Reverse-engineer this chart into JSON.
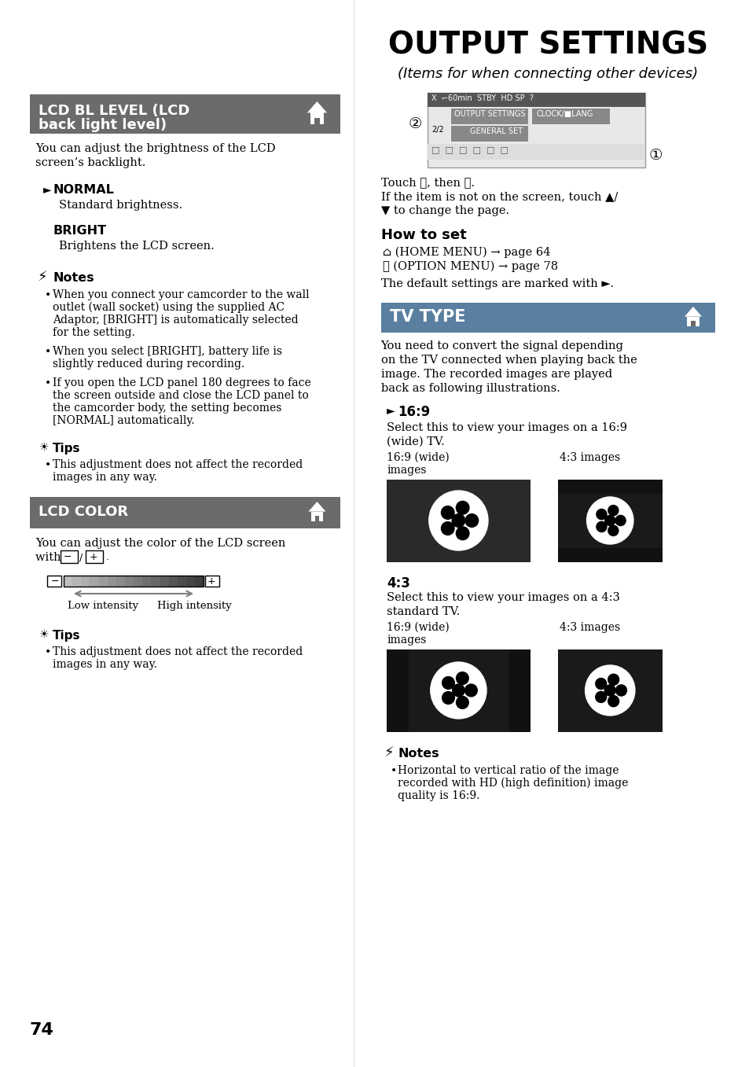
{
  "bg_color": "#ffffff",
  "title": "OUTPUT SETTINGS",
  "subtitle": "(Items for when connecting other devices)",
  "section1_header": "LCD BL LEVEL (LCD\nback light level)",
  "section1_color": "#6b6b6b",
  "section2_header": "LCD COLOR",
  "section2_color": "#6b6b6b",
  "section3_header": "TV TYPE",
  "section3_color": "#5a7fa0",
  "page_number": "74"
}
